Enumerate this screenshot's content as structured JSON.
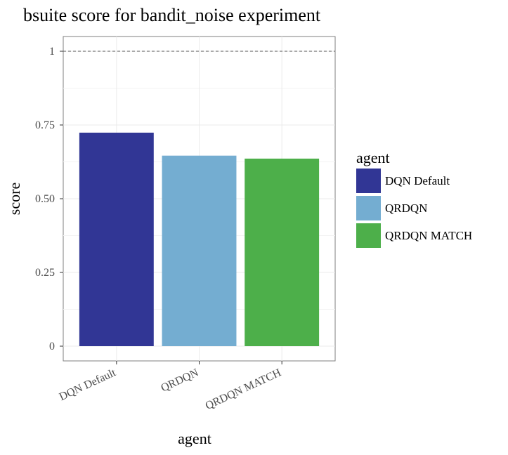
{
  "chart_data": {
    "type": "bar",
    "title": "bsuite score for bandit_noise experiment",
    "xlabel": "agent",
    "ylabel": "score",
    "categories": [
      "DQN Default",
      "QRDQN",
      "QRDQN MATCH"
    ],
    "values": [
      0.724,
      0.646,
      0.636
    ],
    "colors": [
      "#313695",
      "#74add1",
      "#4daf4a"
    ],
    "ylim": [
      -0.05,
      1.05
    ],
    "yticks": [
      0,
      0.25,
      0.5,
      0.75,
      1
    ],
    "ytick_labels": [
      "0",
      "0.25",
      "0.50",
      "0.75",
      "1"
    ],
    "reference_line": 1,
    "grid": true,
    "legend": {
      "title": "agent",
      "placement": "right",
      "entries": [
        "DQN Default",
        "QRDQN",
        "QRDQN MATCH"
      ]
    }
  }
}
